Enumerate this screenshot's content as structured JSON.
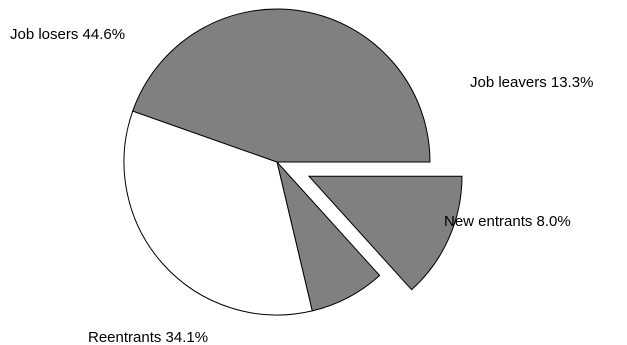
{
  "chart_data": {
    "type": "pie",
    "title": "",
    "slices": [
      {
        "label": "Job leavers 13.3%",
        "name": "Job leavers",
        "value": 13.3,
        "color": "#808080",
        "exploded": true
      },
      {
        "label": "New entrants 8.0%",
        "name": "New entrants",
        "value": 8.0,
        "color": "#808080",
        "exploded": false
      },
      {
        "label": "Reentrants 34.1%",
        "name": "Reentrants",
        "value": 34.1,
        "color": "#ffffff",
        "exploded": false
      },
      {
        "label": "Job losers 44.6%",
        "name": "Job losers",
        "value": 44.6,
        "color": "#808080",
        "exploded": false
      }
    ],
    "start_angle_deg": 0,
    "direction": "clockwise",
    "legend": "none",
    "stroke_color": "#000000"
  }
}
